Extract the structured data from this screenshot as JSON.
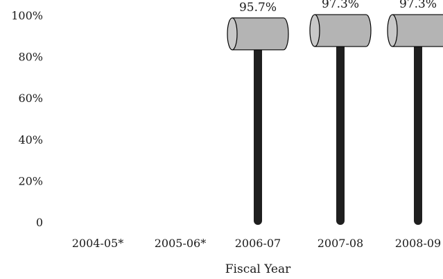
{
  "chart_data": {
    "type": "bar",
    "title": "",
    "xlabel": "Fiscal Year",
    "ylabel": "",
    "categories": [
      "2004-05*",
      "2005-06*",
      "2006-07",
      "2007-08",
      "2008-09"
    ],
    "values": [
      null,
      null,
      95.7,
      97.3,
      97.3
    ],
    "data_labels": [
      "",
      "",
      "95.7%",
      "97.3%",
      "97.3%"
    ],
    "ylim": [
      0,
      100
    ],
    "yticks": [
      0,
      20,
      40,
      60,
      80,
      100
    ],
    "ytick_labels": [
      "0",
      "20%",
      "40%",
      "60%",
      "80%",
      "100%"
    ],
    "grid": false,
    "legend": "none",
    "colors": {
      "handle": "#1f1f1f",
      "head": "#b4b4b4",
      "head_outline": "#000000",
      "head_face": "#c8c8c8"
    }
  }
}
